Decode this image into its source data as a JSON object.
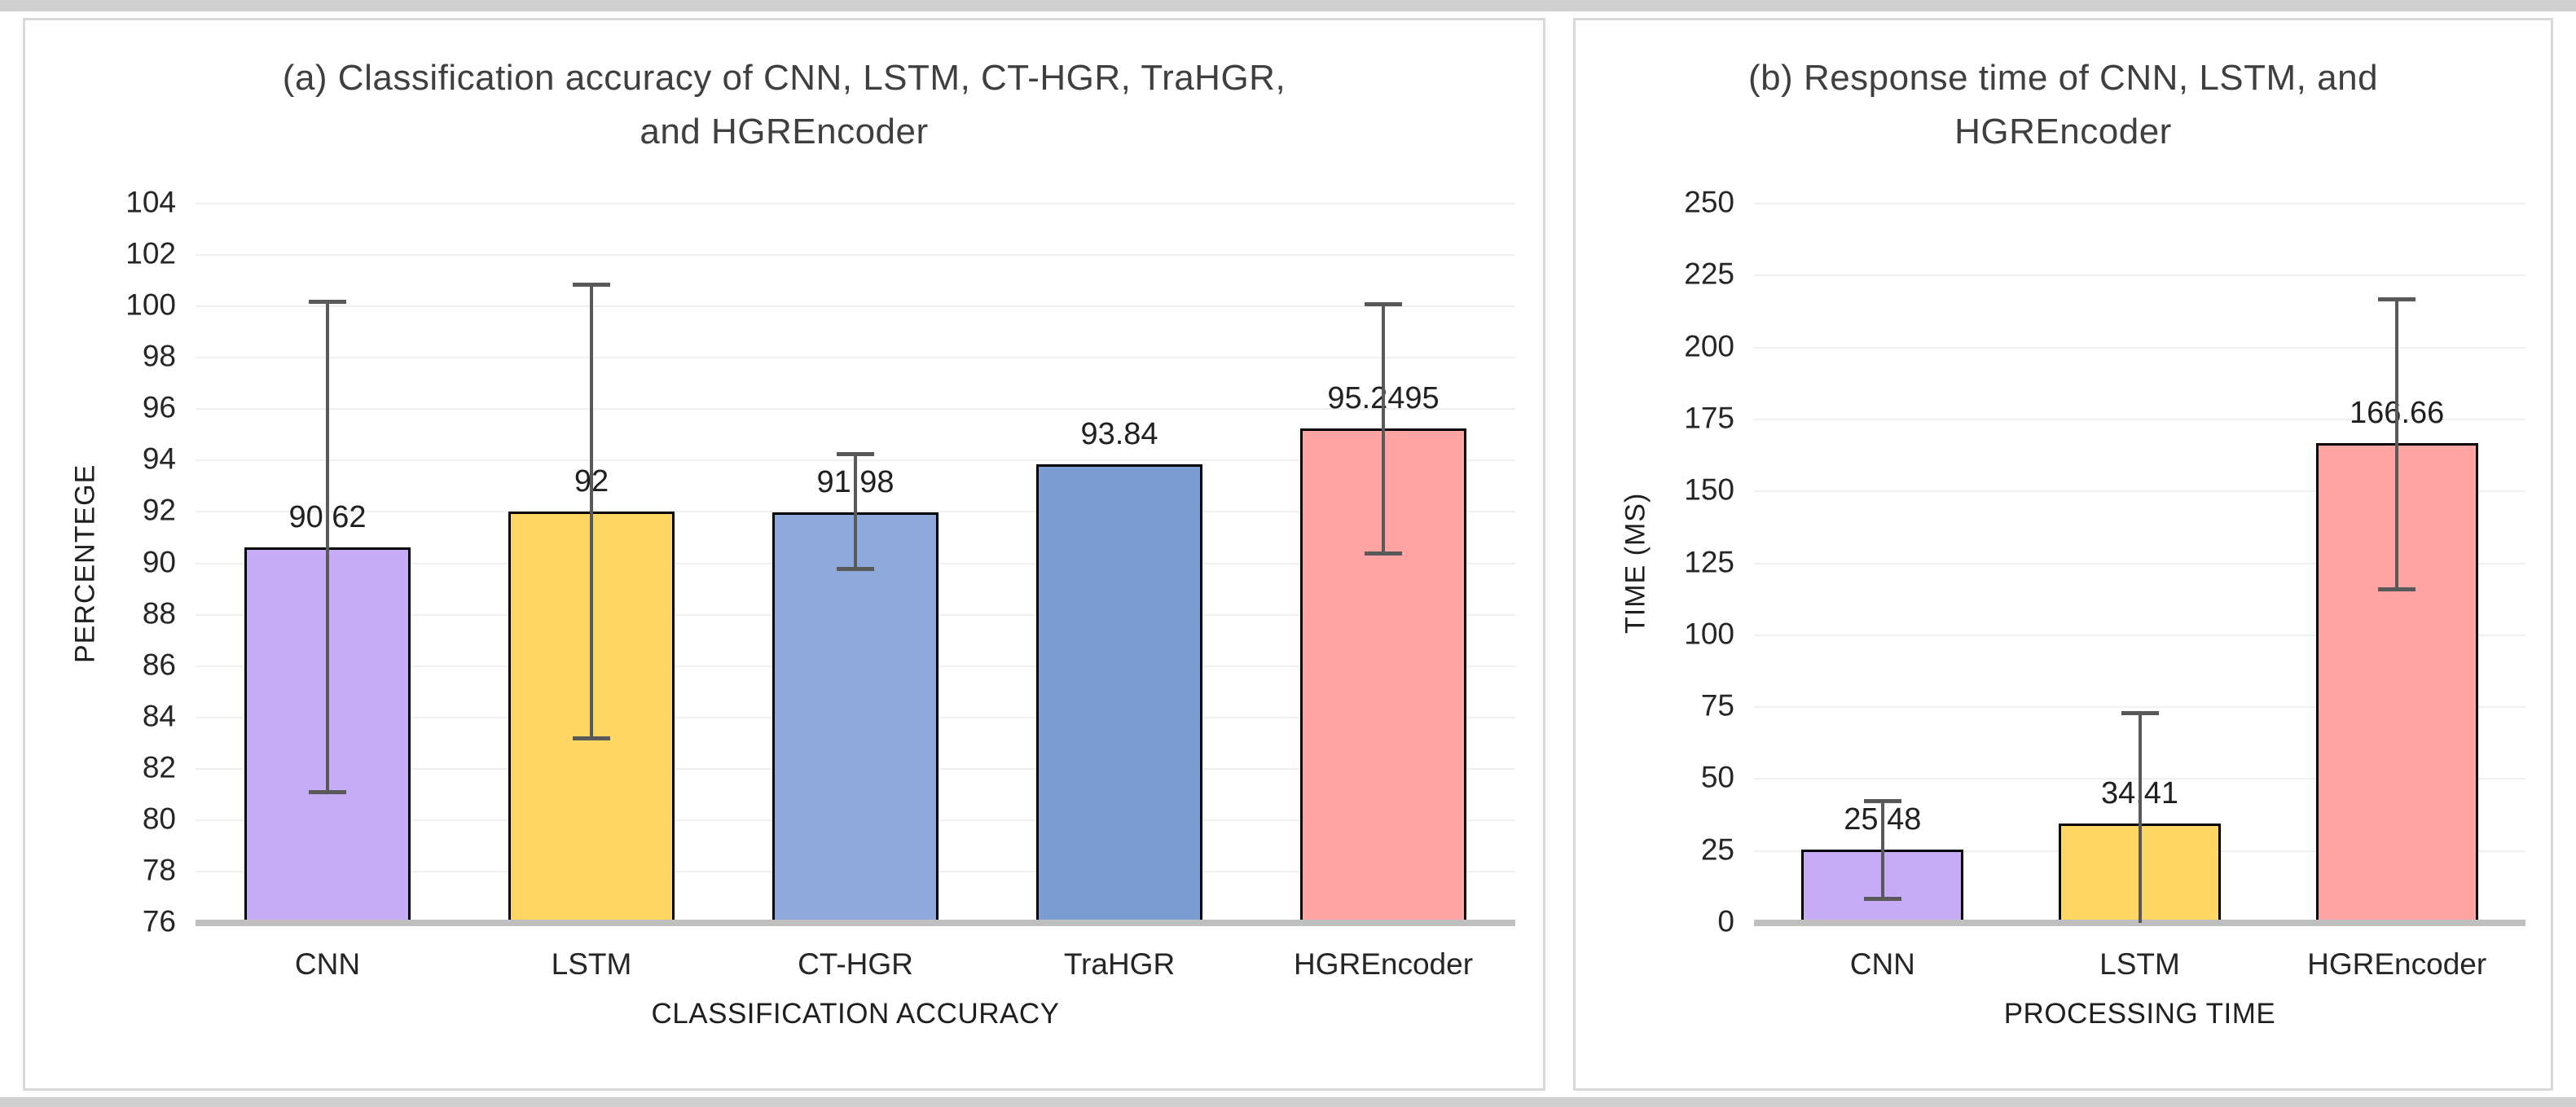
{
  "page": {
    "background": "#FFFFFF",
    "frame_color": "#CFCFCF",
    "panel_border_color": "#D9D9D9"
  },
  "style": {
    "gridline_color": "#EFEFEF",
    "baseline_color": "#BFBFBF",
    "bar_border_color": "#000000",
    "error_bar_color": "#595959",
    "title_color": "#3F3F3F",
    "text_color": "#1F1F1F"
  },
  "chart_data": [
    {
      "type": "bar",
      "panel": "a",
      "title": "(a) Classification accuracy of CNN, LSTM, CT-HGR, TraHGR, and HGREncoder",
      "title_lines": [
        "(a) Classification accuracy of CNN, LSTM, CT-HGR, TraHGR,",
        "and HGREncoder"
      ],
      "xlabel": "CLASSIFICATION ACCURACY",
      "ylabel": "PERCENTEGE",
      "ylim": [
        76,
        104
      ],
      "ytick_step": 2,
      "grid": true,
      "legend": "none",
      "categories": [
        "CNN",
        "LSTM",
        "CT-HGR",
        "TraHGR",
        "HGREncoder"
      ],
      "values": [
        90.62,
        92,
        91.98,
        93.84,
        95.2495
      ],
      "value_labels": [
        "90.62",
        "92",
        "91.98",
        "93.84",
        "95.2495"
      ],
      "bar_colors": [
        "#C6ACF7",
        "#FDD663",
        "#8EAADC",
        "#7C9CD6",
        "#FFA3A3"
      ],
      "error_bars": [
        {
          "low": 81.1,
          "high": 100.2,
          "cap_low": true,
          "cap_high": true
        },
        {
          "low": 83.2,
          "high": 100.85,
          "cap_low": true,
          "cap_high": true
        },
        {
          "low": 89.8,
          "high": 94.25,
          "cap_low": true,
          "cap_high": true
        },
        null,
        {
          "low": 90.4,
          "high": 100.1,
          "cap_low": true,
          "cap_high": true
        }
      ]
    },
    {
      "type": "bar",
      "panel": "b",
      "title": "(b) Response time of CNN, LSTM, and HGREncoder",
      "title_lines": [
        "(b) Response time of CNN, LSTM, and",
        "HGREncoder"
      ],
      "xlabel": "PROCESSING TIME",
      "ylabel": "TIME (MS)",
      "ylim": [
        0,
        250
      ],
      "ytick_step": 25,
      "grid": true,
      "legend": "none",
      "categories": [
        "CNN",
        "LSTM",
        "HGREncoder"
      ],
      "values": [
        25.48,
        34.41,
        166.66
      ],
      "value_labels": [
        "25.48",
        "34.41",
        "166.66"
      ],
      "bar_colors": [
        "#C6ACF7",
        "#FDD663",
        "#FFA3A3"
      ],
      "error_bars": [
        {
          "low": 8.6,
          "high": 42.4,
          "cap_low": true,
          "cap_high": true
        },
        {
          "low": 0,
          "high": 73,
          "cap_low": false,
          "cap_high": true
        },
        {
          "low": 116,
          "high": 217,
          "cap_low": true,
          "cap_high": true
        }
      ]
    }
  ]
}
